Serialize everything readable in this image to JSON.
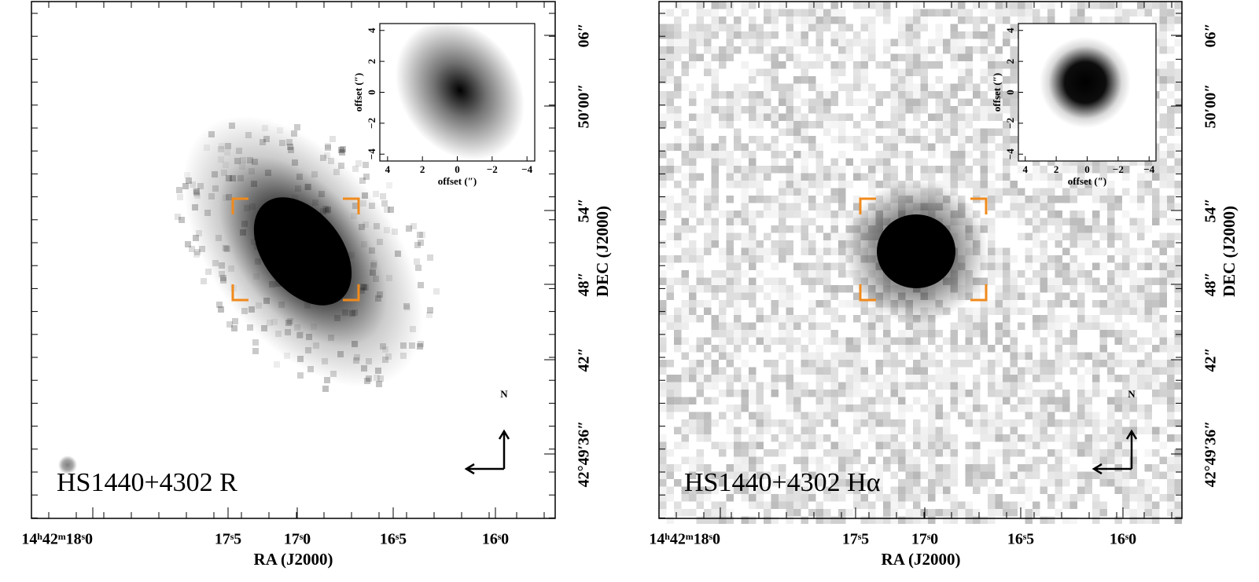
{
  "panels": [
    {
      "label": "HS1440+4302 R",
      "x_axis": {
        "label": "RA (J2000)",
        "ticks": [
          "14ʰ42ᵐ18ˢ0",
          "17ˢ5",
          "17ˢ0",
          "16ˢ5",
          "16ˢ0"
        ]
      },
      "y_axis": {
        "label": "DEC (J2000)",
        "ticks": [
          "06″",
          "50′00″",
          "54″",
          "48″",
          "42″",
          "42°49′36″"
        ]
      },
      "inset": {
        "x_label": "offset (″)",
        "y_label": "offset (″)",
        "x_ticks": [
          "4",
          "2",
          "0",
          "−2",
          "−4"
        ],
        "y_ticks": [
          "4",
          "2",
          "0",
          "−2",
          "−4"
        ]
      },
      "compass": "N"
    },
    {
      "label": "HS1440+4302 Hα",
      "x_axis": {
        "label": "RA (J2000)",
        "ticks": [
          "14ʰ42ᵐ18ˢ0",
          "17ˢ5",
          "17ˢ0",
          "16ˢ5",
          "16ˢ0"
        ]
      },
      "y_axis": {
        "label": "DEC (J2000)",
        "ticks": [
          "06″",
          "50′00″",
          "54″",
          "48″",
          "42″",
          "42°49′36″"
        ]
      },
      "inset": {
        "x_label": "offset (″)",
        "y_label": "offset (″)",
        "x_ticks": [
          "4",
          "2",
          "0",
          "−2",
          "−4"
        ],
        "y_ticks": [
          "4",
          "2",
          "0",
          "−2",
          "−4"
        ]
      },
      "compass": "N"
    }
  ]
}
